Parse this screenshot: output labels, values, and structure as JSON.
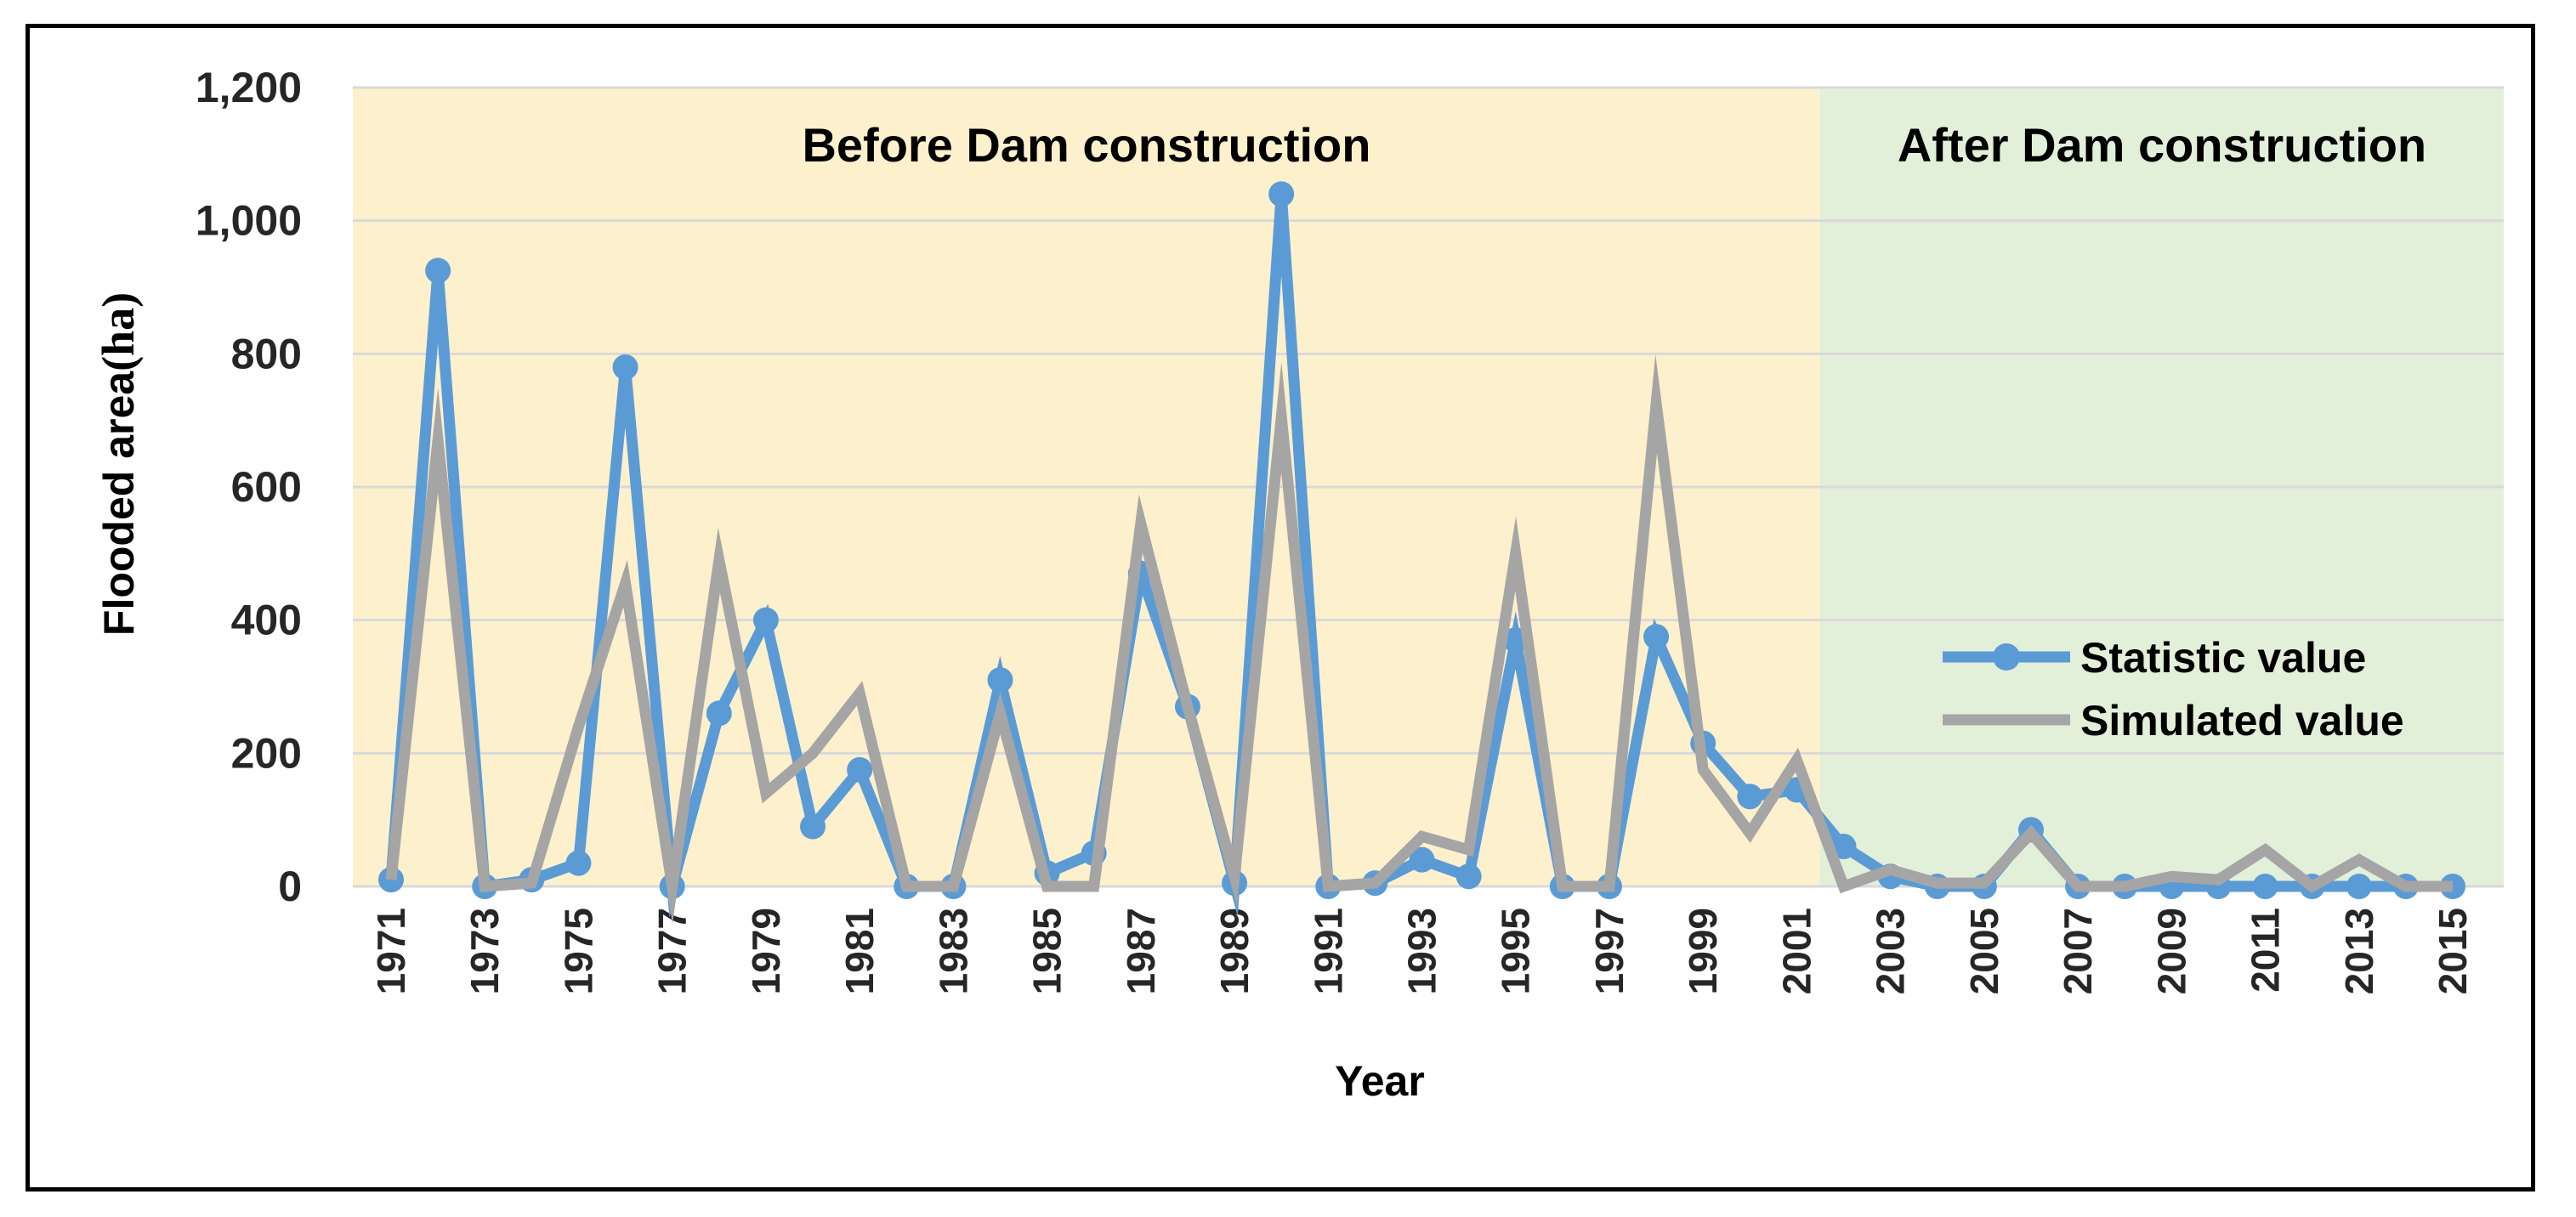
{
  "chart_data": {
    "type": "line",
    "title": "",
    "xlabel": "Year",
    "ylabel_main": "Flooded area",
    "ylabel_unit": "ha",
    "ylim": [
      0,
      1200
    ],
    "yticks": [
      0,
      200,
      400,
      600,
      800,
      1000,
      1200
    ],
    "ytick_labels": [
      "0",
      "200",
      "400",
      "600",
      "800",
      "1,000",
      "1,200"
    ],
    "grid": true,
    "x": [
      1971,
      1972,
      1973,
      1974,
      1975,
      1976,
      1977,
      1978,
      1979,
      1980,
      1981,
      1982,
      1983,
      1984,
      1985,
      1986,
      1987,
      1988,
      1989,
      1990,
      1991,
      1992,
      1993,
      1994,
      1995,
      1996,
      1997,
      1998,
      1999,
      2000,
      2001,
      2002,
      2003,
      2004,
      2005,
      2006,
      2007,
      2008,
      2009,
      2010,
      2011,
      2012,
      2013,
      2014,
      2015
    ],
    "xtick_labels": [
      "1971",
      "1973",
      "1975",
      "1977",
      "1979",
      "1981",
      "1983",
      "1985",
      "1987",
      "1989",
      "1991",
      "1993",
      "1995",
      "1997",
      "1999",
      "2001",
      "2003",
      "2005",
      "2007",
      "2009",
      "2011",
      "2013",
      "2015"
    ],
    "regions": [
      {
        "label": "Before Dam construction",
        "from": 1971,
        "to": 2001.5,
        "color": "#fdf0cc"
      },
      {
        "label": "After Dam construction",
        "from": 2001.5,
        "to": 2015,
        "color": "#e2efd9"
      }
    ],
    "series": [
      {
        "name": "Statistic value",
        "color": "#5b9bd5",
        "markers": true,
        "values": [
          10,
          925,
          0,
          10,
          35,
          780,
          0,
          260,
          400,
          90,
          175,
          0,
          0,
          310,
          20,
          50,
          470,
          270,
          5,
          1040,
          0,
          5,
          40,
          15,
          370,
          0,
          0,
          375,
          215,
          135,
          145,
          60,
          15,
          0,
          0,
          85,
          0,
          0,
          0,
          0,
          0,
          0,
          0,
          0,
          0
        ]
      },
      {
        "name": "Simulated value",
        "color": "#a5a5a5",
        "markers": false,
        "values": [
          10,
          670,
          0,
          5,
          240,
          455,
          0,
          490,
          140,
          200,
          290,
          0,
          0,
          260,
          0,
          0,
          545,
          270,
          15,
          705,
          0,
          5,
          75,
          55,
          500,
          0,
          0,
          725,
          175,
          80,
          190,
          0,
          25,
          5,
          5,
          80,
          0,
          0,
          15,
          10,
          55,
          0,
          40,
          0,
          0
        ]
      }
    ],
    "legend_position": "right"
  }
}
